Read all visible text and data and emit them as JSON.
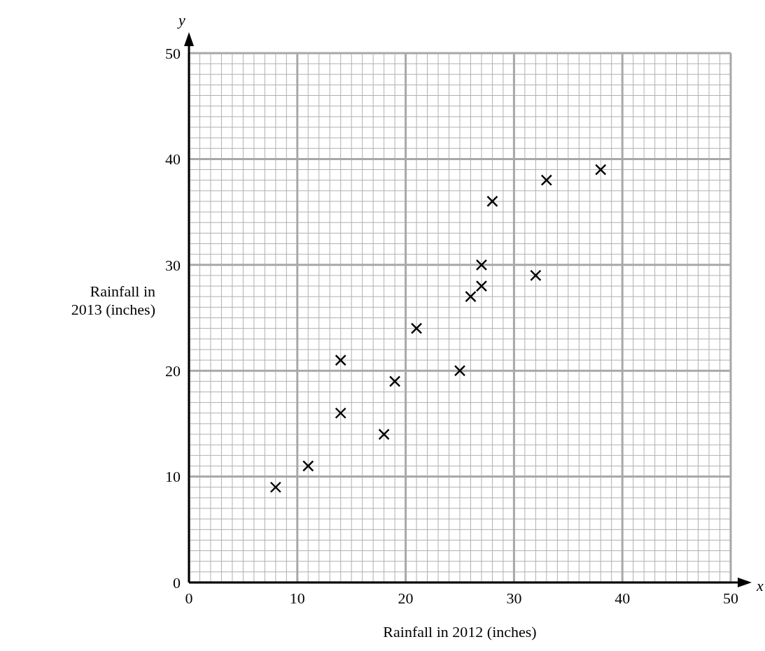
{
  "chart_data": {
    "type": "scatter",
    "xlabel": "Rainfall in 2012 (inches)",
    "ylabel": "Rainfall in 2013 (inches)",
    "annotations": [
      "x",
      "y"
    ],
    "x": [
      8,
      11,
      14,
      14,
      18,
      19,
      21,
      25,
      26,
      27,
      27,
      28,
      32,
      33,
      38
    ],
    "values": [
      9,
      11,
      16,
      21,
      14,
      19,
      24,
      20,
      27,
      28,
      30,
      36,
      29,
      38,
      39
    ],
    "color": "#000000",
    "marker": "cross",
    "xlim": [
      0,
      50
    ],
    "ylim": [
      0,
      50
    ],
    "xticks": [
      0,
      10,
      20,
      30,
      40,
      50
    ],
    "yticks": [
      0,
      10,
      20,
      30,
      40,
      50
    ],
    "grid": true
  }
}
